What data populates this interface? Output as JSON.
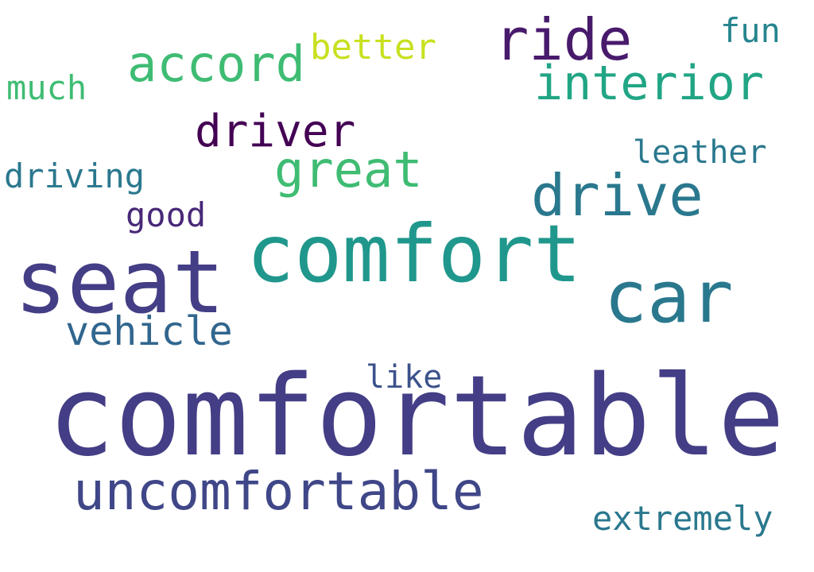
{
  "words": {
    "comfortable": {
      "text": "comfortable",
      "color": "#433e85"
    },
    "seat": {
      "text": "seat",
      "color": "#433e85"
    },
    "comfort": {
      "text": "comfort",
      "color": "#20978c"
    },
    "car": {
      "text": "car",
      "color": "#2a788e"
    },
    "uncomfortable": {
      "text": "uncomfortable",
      "color": "#3f4788"
    },
    "drive": {
      "text": "drive",
      "color": "#2a788e"
    },
    "ride": {
      "text": "ride",
      "color": "#481a6c"
    },
    "accord": {
      "text": "accord",
      "color": "#3fbc73"
    },
    "great": {
      "text": "great",
      "color": "#3fbc73"
    },
    "interior": {
      "text": "interior",
      "color": "#21a585"
    },
    "driver": {
      "text": "driver",
      "color": "#440154"
    },
    "vehicle": {
      "text": "vehicle",
      "color": "#31668e"
    },
    "better": {
      "text": "better",
      "color": "#c8e020"
    },
    "fun": {
      "text": "fun",
      "color": "#25858e"
    },
    "much": {
      "text": "much",
      "color": "#3fbc73"
    },
    "driving": {
      "text": "driving",
      "color": "#2a788e"
    },
    "good": {
      "text": "good",
      "color": "#482878"
    },
    "leather": {
      "text": "leather",
      "color": "#2a788e"
    },
    "like": {
      "text": "like",
      "color": "#3b528b"
    },
    "extremely": {
      "text": "extremely",
      "color": "#2a788e"
    }
  }
}
